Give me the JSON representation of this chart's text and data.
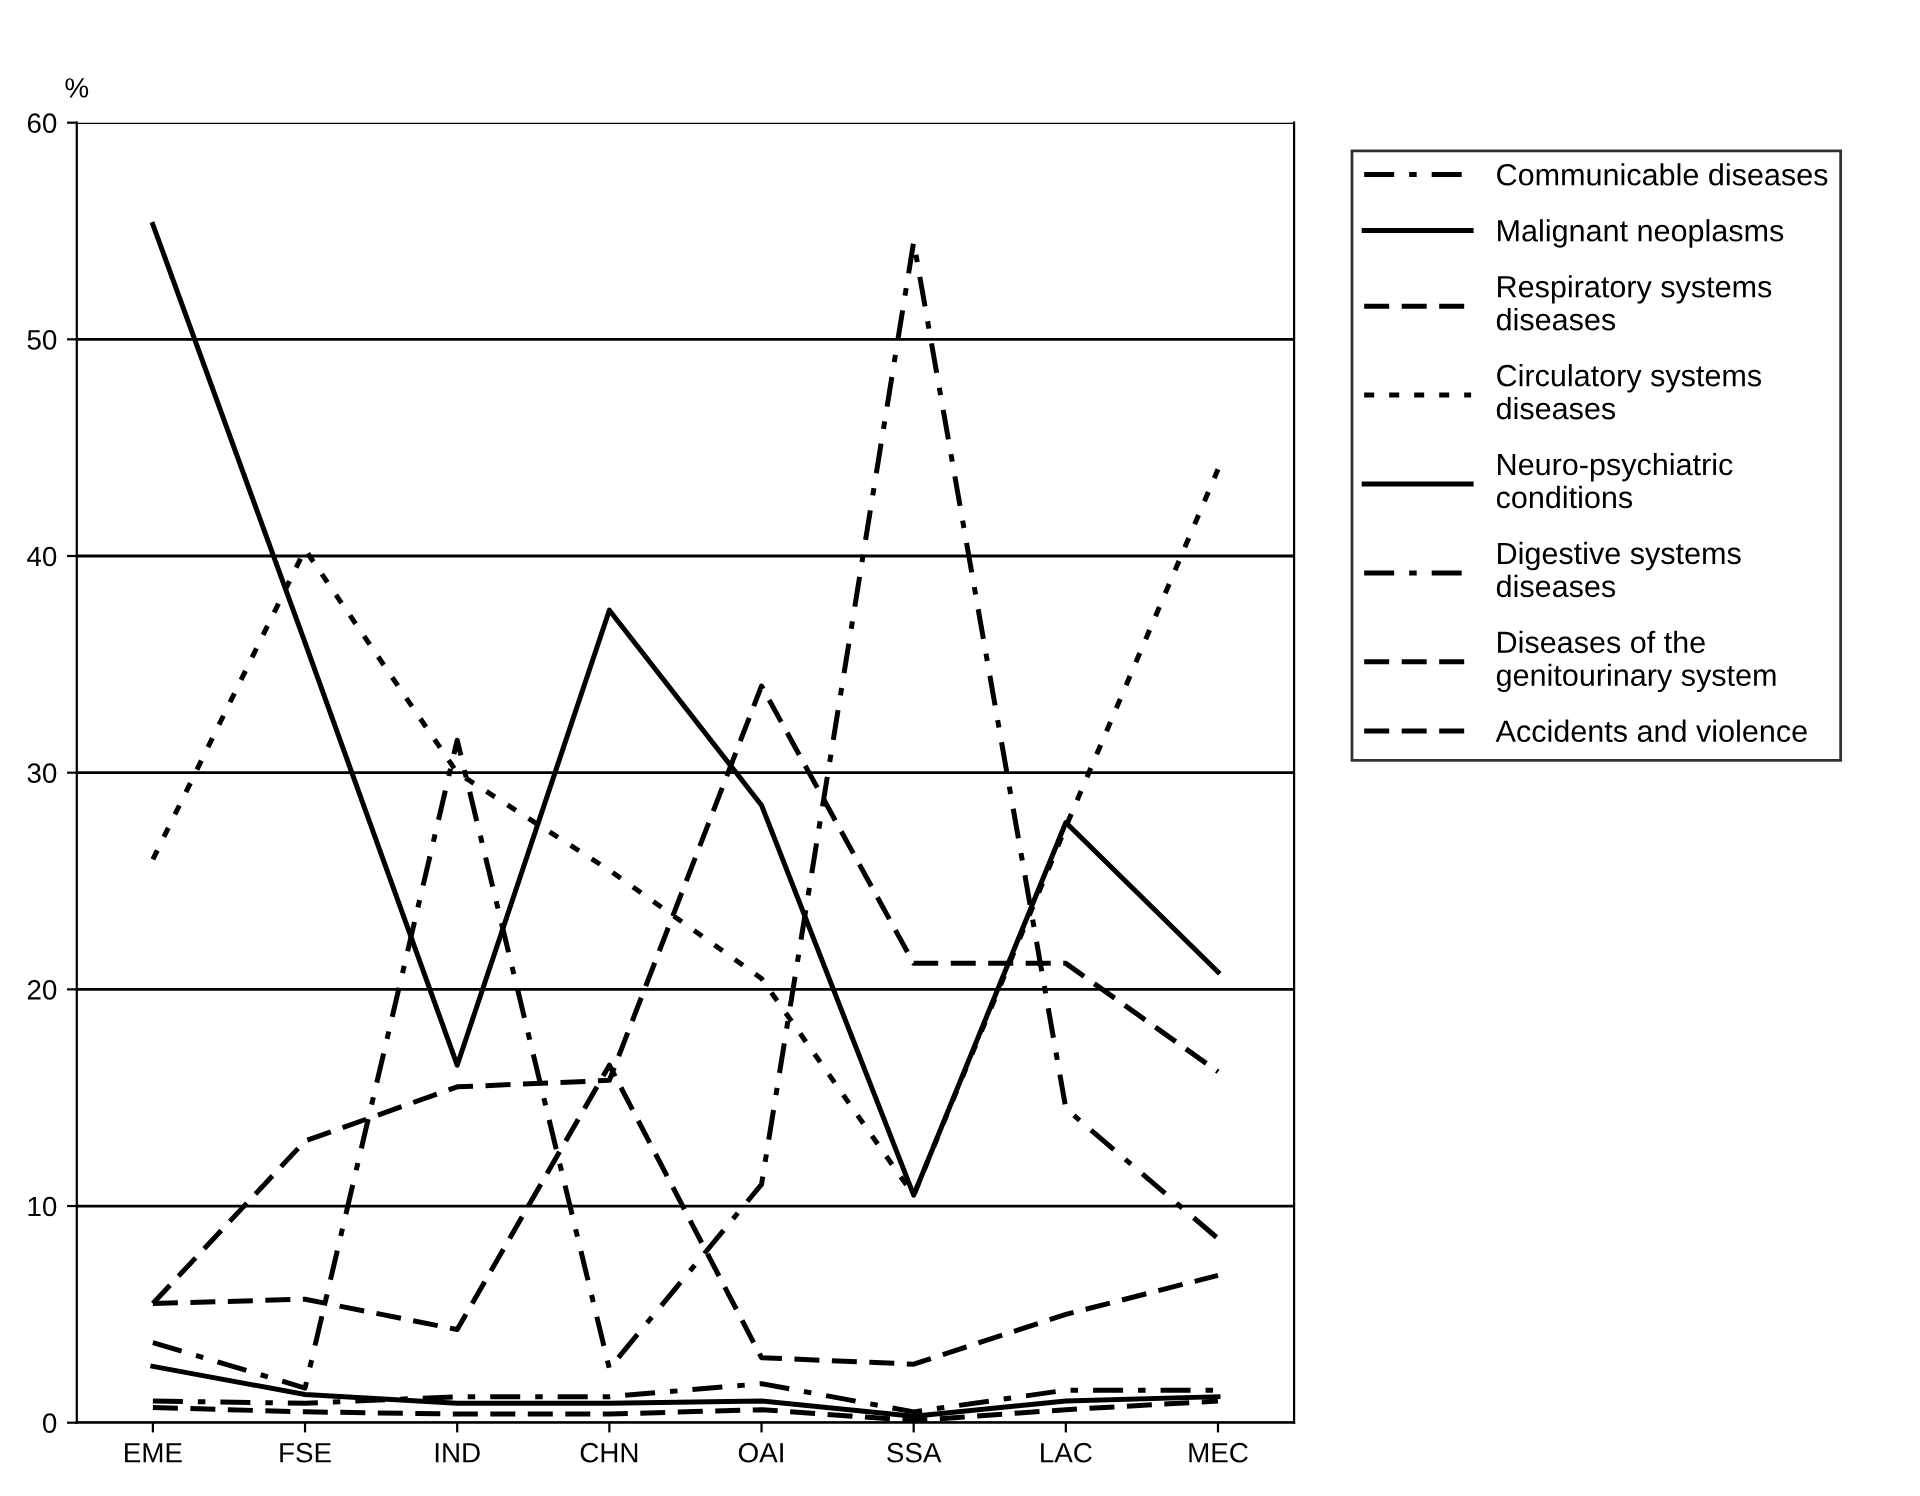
{
  "chart_data": {
    "type": "line",
    "ylabel": "%",
    "categories": [
      "EME",
      "FSE",
      "IND",
      "CHN",
      "OAI",
      "SSA",
      "LAC",
      "MEC"
    ],
    "ylim": [
      0,
      60
    ],
    "yticks": [
      0,
      10,
      20,
      30,
      40,
      50,
      60
    ],
    "grid": "y",
    "legend": "top right",
    "marker": "none",
    "series": [
      {
        "name": "Communicable diseases",
        "color": "#000000",
        "line_style": "dashdot",
        "values": [
          3.7,
          1.6,
          31.5,
          2.5,
          11,
          54.5,
          14.5,
          8.5
        ]
      },
      {
        "name": "Malignant neoplasms",
        "color": "#000000",
        "line_style": "solid",
        "values": [
          55.3,
          36,
          16.5,
          37.5,
          28.5,
          10.5,
          27.7,
          20.8
        ]
      },
      {
        "name": "Respiratory systems diseases",
        "color": "#000000",
        "line_style": "dashed",
        "values": [
          5.5,
          5.7,
          4.3,
          16.5,
          3,
          2.7,
          5,
          6.8
        ]
      },
      {
        "name": "Circulatory systems diseases",
        "color": "#000000",
        "line_style": "dotted",
        "values": [
          26,
          40.3,
          30,
          25.5,
          20.5,
          10.5,
          27.5,
          44
        ]
      },
      {
        "name": "Neuro-psychiatric conditions",
        "color": "#000000",
        "line_style": "solid",
        "values": [
          2.6,
          1.3,
          0.9,
          0.9,
          1.0,
          0.3,
          1.0,
          1.2
        ]
      },
      {
        "name": "Digestive systems diseases",
        "color": "#000000",
        "line_style": "dashdot",
        "values": [
          1.0,
          0.9,
          1.2,
          1.2,
          1.8,
          0.5,
          1.5,
          1.5
        ]
      },
      {
        "name": "Diseases of the genitourinary system",
        "color": "#000000",
        "line_style": "dashed",
        "values": [
          0.7,
          0.5,
          0.4,
          0.4,
          0.6,
          0.1,
          0.6,
          1.0
        ]
      },
      {
        "name": "Accidents and violence",
        "color": "#000000",
        "line_style": "dashed",
        "values": [
          5.5,
          13,
          15.5,
          15.8,
          34,
          21.2,
          21.2,
          16.2
        ]
      }
    ]
  }
}
